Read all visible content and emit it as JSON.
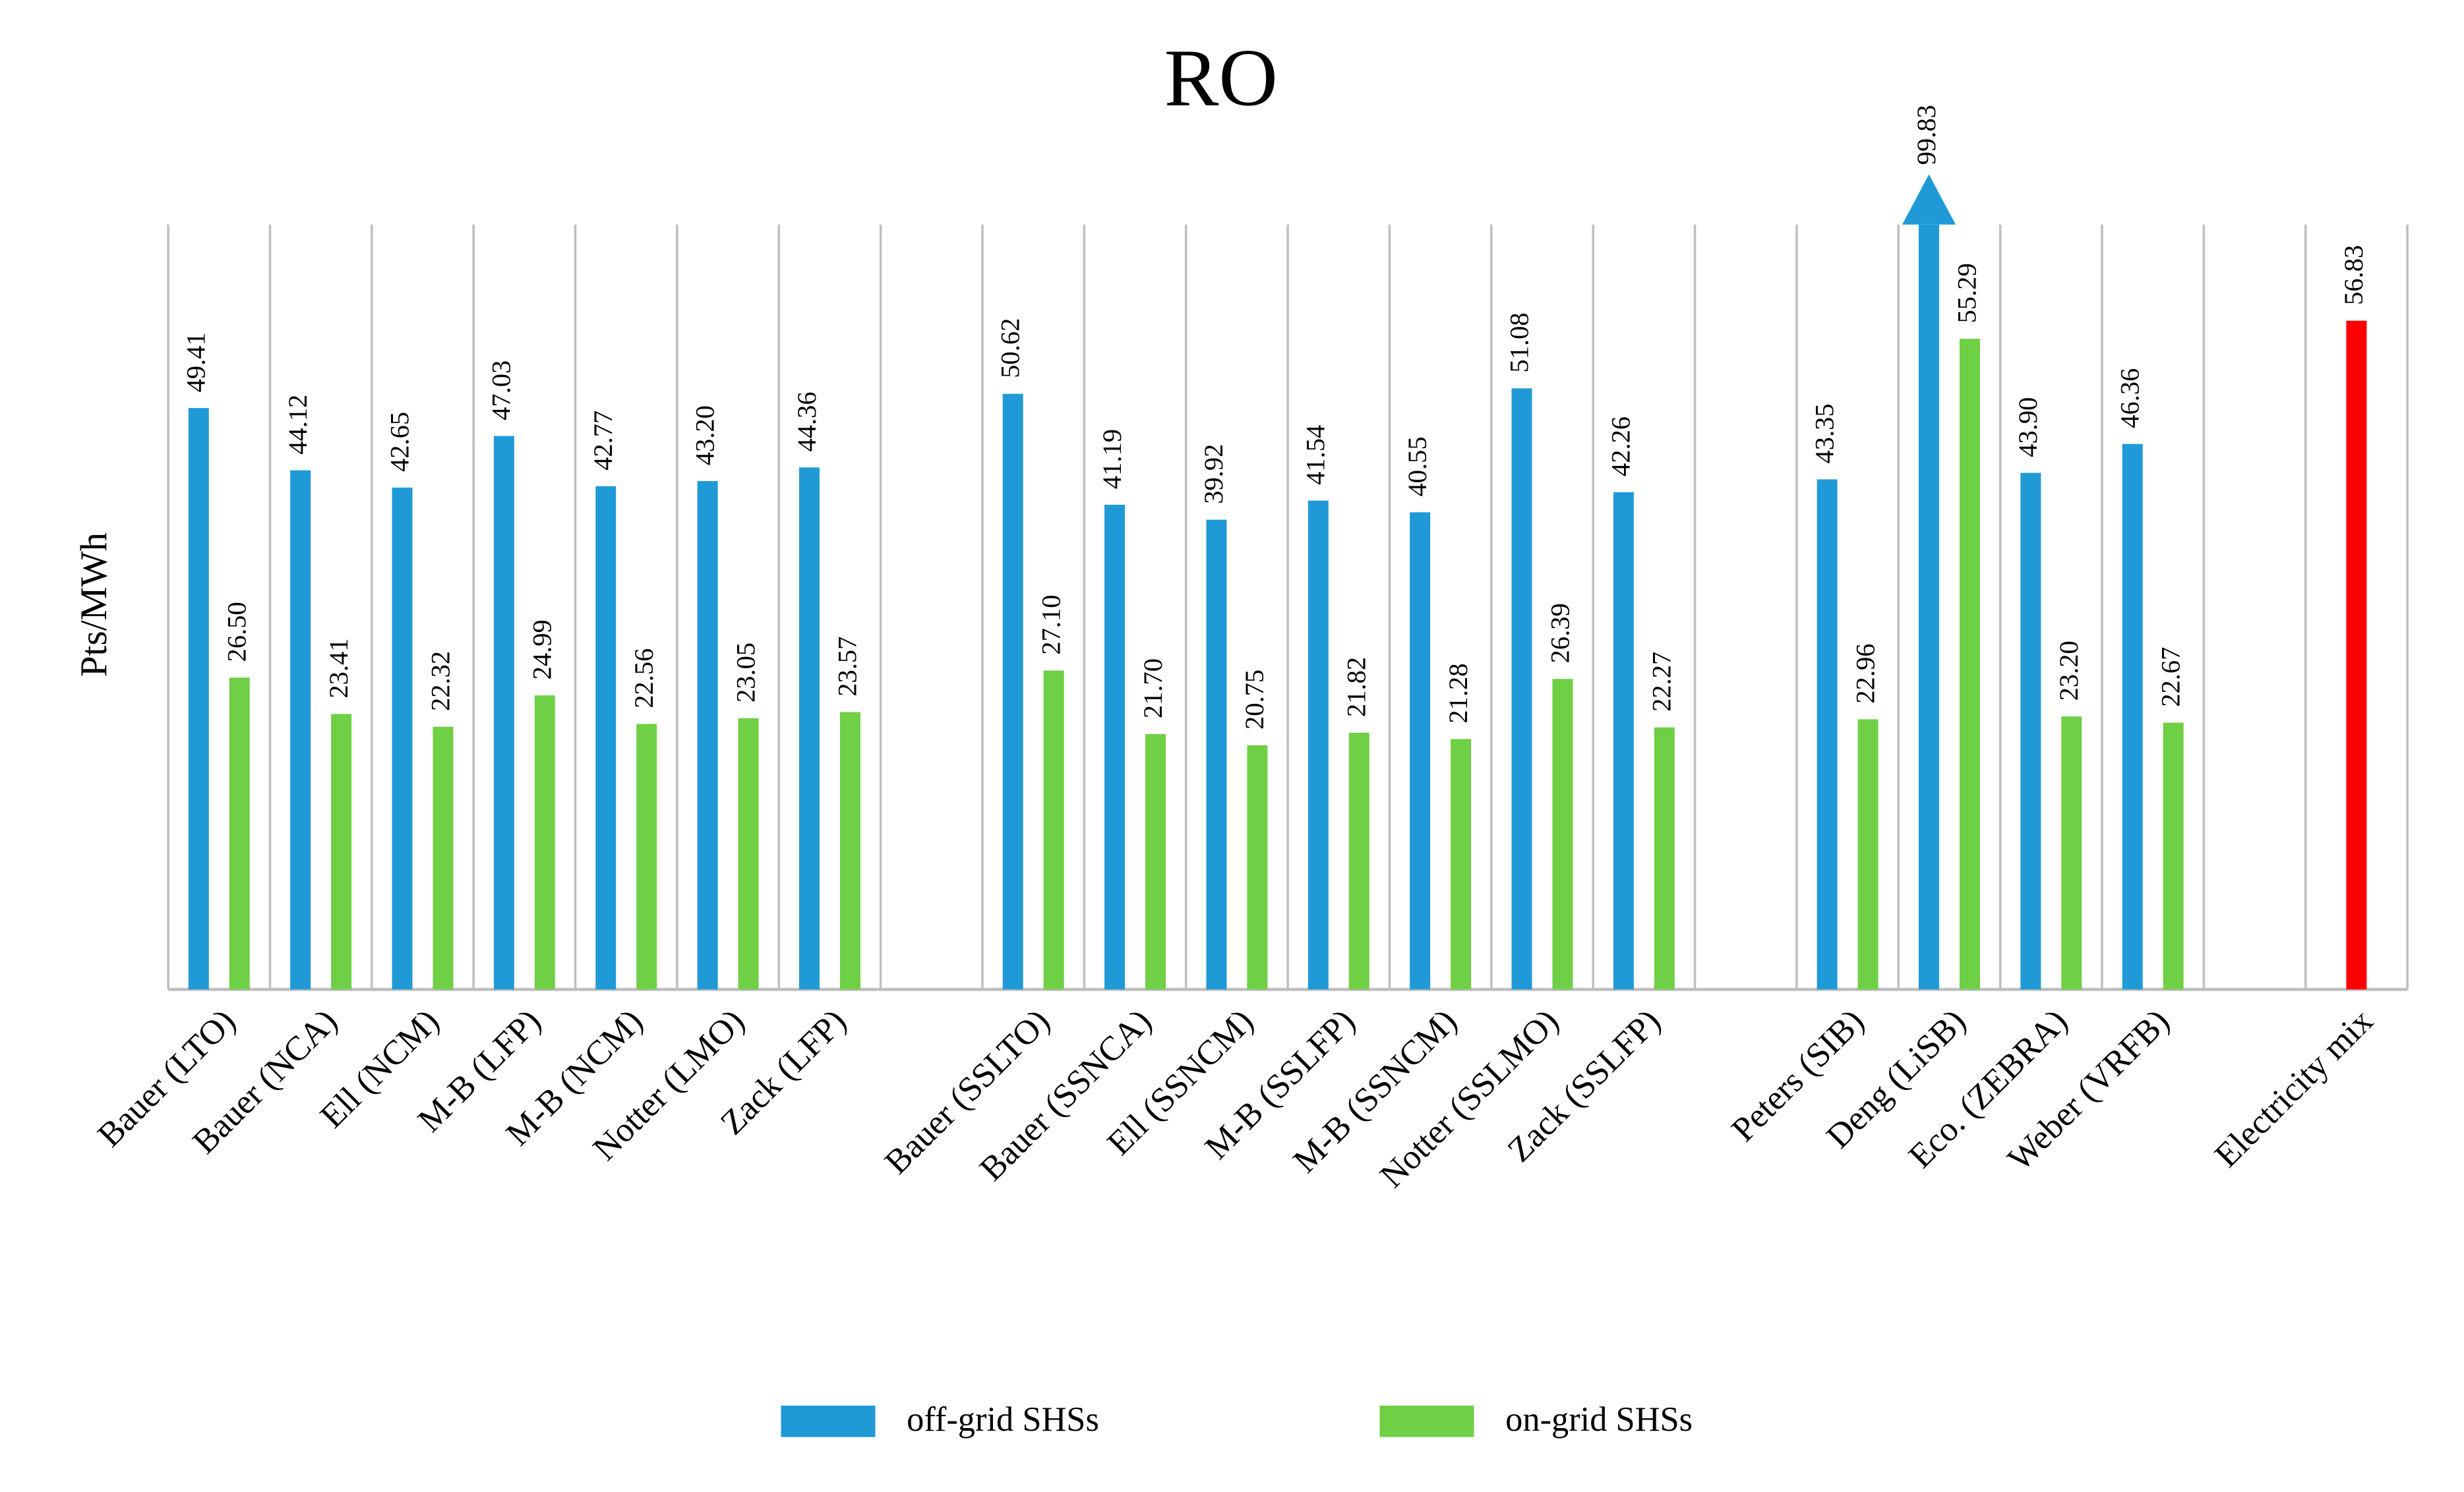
{
  "chart_data": {
    "type": "bar",
    "title": "RO",
    "y_label": "Pts/MWh",
    "categories": [
      "Bauer (LTO)",
      "Bauer (NCA)",
      "Ell (NCM)",
      "M-B (LFP)",
      "M-B (NCM)",
      "Notter (LMO)",
      "Zack (LFP)",
      null,
      "Bauer (SSLTO)",
      "Bauer (SSNCA)",
      "Ell (SSNCM)",
      "M-B (SSLFP)",
      "M-B (SSNCM)",
      "Notter (SSLMO)",
      "Zack (SSLFP)",
      null,
      "Peters (SIB)",
      "Deng (LiSB)",
      "Eco. (ZEBRA)",
      "Weber (VRFB)",
      null,
      "Electricity mix"
    ],
    "series": [
      {
        "name": "off-grid SHSs",
        "color": "#1f9ad6",
        "colors": [
          "#1f9ad6",
          "#1f9ad6",
          "#1f9ad6",
          "#1f9ad6",
          "#1f9ad6",
          "#1f9ad6",
          "#1f9ad6",
          "#1f9ad6",
          "#1f9ad6",
          "#1f9ad6",
          "#1f9ad6",
          "#1f9ad6",
          "#1f9ad6",
          "#1f9ad6",
          "#1f9ad6",
          "#1f9ad6",
          "#1f9ad6",
          "#1f9ad6",
          "#1f9ad6",
          "#1f9ad6",
          "#1f9ad6",
          "#ff0000"
        ],
        "values": [
          49.41,
          44.12,
          42.65,
          47.03,
          42.77,
          43.2,
          44.36,
          null,
          50.62,
          41.19,
          39.92,
          41.54,
          40.55,
          51.08,
          42.26,
          null,
          43.35,
          99.83,
          43.9,
          46.36,
          null,
          56.83
        ],
        "value_labels": [
          "49.41",
          "44.12",
          "42.65",
          "47.03",
          "42.77",
          "43.20",
          "44.36",
          null,
          "50.62",
          "41.19",
          "39.92",
          "41.54",
          "40.55",
          "51.08",
          "42.26",
          null,
          "43.35",
          "99.83",
          "43.90",
          "46.36",
          null,
          "56.83"
        ]
      },
      {
        "name": "on-grid SHSs",
        "color": "#6fcf45",
        "values": [
          26.5,
          23.41,
          22.32,
          24.99,
          22.56,
          23.05,
          23.57,
          null,
          27.1,
          21.7,
          20.75,
          21.82,
          21.28,
          26.39,
          22.27,
          null,
          22.96,
          55.29,
          23.2,
          22.67,
          null,
          null
        ],
        "value_labels": [
          "26.50",
          "23.41",
          "22.32",
          "24.99",
          "22.56",
          "23.05",
          "23.57",
          null,
          "27.10",
          "21.70",
          "20.75",
          "21.82",
          "21.28",
          "26.39",
          "22.27",
          null,
          "22.96",
          "55.29",
          "23.20",
          "22.67",
          null,
          null
        ]
      }
    ],
    "ylim": [
      0,
      65
    ],
    "grid": "x",
    "legend": "bottom"
  }
}
